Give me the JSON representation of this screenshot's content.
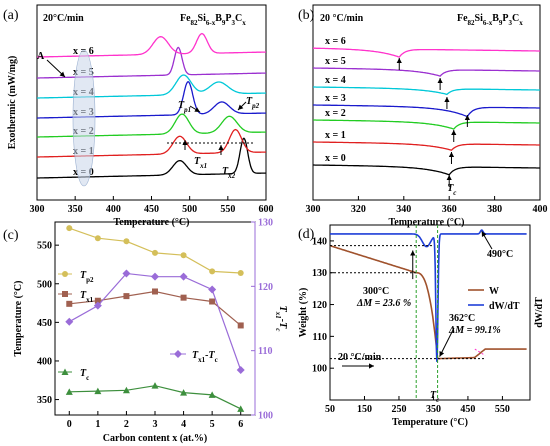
{
  "chart_data": [
    {
      "panel": "(a)",
      "type": "line",
      "rate_label": "20°C/min",
      "formula": "Fe82Si6-xB9P3Cx",
      "xlabel": "Temperature (°C)",
      "ylabel": "Exothermic (mW/mg)",
      "xlim": [
        300,
        600
      ],
      "xticks": [
        300,
        350,
        400,
        450,
        500,
        550,
        600
      ],
      "series": [
        {
          "name": "x = 0",
          "color": "#000000",
          "peaks": [
            {
              "t": 487,
              "h": 1.3,
              "w": 9
            },
            {
              "t": 571,
              "h": 3.2,
              "w": 5
            }
          ]
        },
        {
          "name": "x = 1",
          "color": "#e02020",
          "peaks": [
            {
              "t": 487,
              "h": 1.6,
              "w": 9
            },
            {
              "t": 560,
              "h": 2.1,
              "w": 8
            }
          ]
        },
        {
          "name": "x = 2",
          "color": "#22cc22",
          "peaks": [
            {
              "t": 490,
              "h": 1.8,
              "w": 9
            },
            {
              "t": 552,
              "h": 1.5,
              "w": 10
            }
          ]
        },
        {
          "name": "x = 3",
          "color": "#1a1acc",
          "peaks": [
            {
              "t": 498,
              "h": 3.0,
              "w": 6
            },
            {
              "t": 542,
              "h": 1.1,
              "w": 10
            }
          ]
        },
        {
          "name": "x = 4",
          "color": "#00c8d8",
          "peaks": [
            {
              "t": 492,
              "h": 1.8,
              "w": 10
            },
            {
              "t": 538,
              "h": 1.1,
              "w": 12
            }
          ]
        },
        {
          "name": "x = 5",
          "color": "#9b30d0",
          "peaks": [
            {
              "t": 485,
              "h": 2.5,
              "w": 5
            }
          ]
        },
        {
          "name": "x = 6",
          "color": "#ff33cc",
          "peaks": [
            {
              "t": 462,
              "h": 1.6,
              "w": 10
            },
            {
              "t": 516,
              "h": 1.8,
              "w": 7
            }
          ]
        }
      ],
      "annotations": [
        "A",
        "Tp1",
        "Tp2",
        "Tx1",
        "Tx2"
      ]
    },
    {
      "panel": "(b)",
      "type": "line",
      "rate_label": "20 °C/min",
      "formula": "Fe82Si6-xB9P3Cx",
      "xlabel": "Temperature (°C)",
      "xlim": [
        300,
        400
      ],
      "xticks": [
        300,
        320,
        340,
        360,
        380,
        400
      ],
      "series": [
        {
          "name": "x = 0",
          "color": "#000000",
          "dip_t": 360,
          "dip_h": 1.0
        },
        {
          "name": "x = 1",
          "color": "#e02020",
          "dip_t": 361,
          "dip_h": 0.8
        },
        {
          "name": "x = 2",
          "color": "#22cc22",
          "dip_t": 362,
          "dip_h": 0.9
        },
        {
          "name": "x = 3",
          "color": "#1a1acc",
          "dip_t": 368,
          "dip_h": 1.2
        },
        {
          "name": "x = 4",
          "color": "#00c8d8",
          "dip_t": 359,
          "dip_h": 0.7
        },
        {
          "name": "x = 5",
          "color": "#9b30d0",
          "dip_t": 356,
          "dip_h": 0.8
        },
        {
          "name": "x = 6",
          "color": "#ff33cc",
          "dip_t": 338,
          "dip_h": 1.0
        }
      ],
      "annotations": [
        "Tc"
      ]
    },
    {
      "panel": "(c)",
      "type": "line",
      "xlabel": "Carbon content x (at.%)",
      "ylabel": "Temperature (°C)",
      "y2label": "Tx1-Tc",
      "x": [
        0,
        1,
        2,
        3,
        4,
        5,
        6
      ],
      "xlim": [
        -0.5,
        6.5
      ],
      "ylim": [
        330,
        580
      ],
      "yticks": [
        350,
        400,
        450,
        500,
        550
      ],
      "y2lim": [
        100,
        130
      ],
      "y2ticks": [
        100,
        110,
        120,
        130
      ],
      "series": [
        {
          "name": "Tp2",
          "color": "#d4bf5a",
          "marker": "circle",
          "axis": "left",
          "values": [
            572,
            559,
            555,
            540,
            537,
            516,
            514
          ]
        },
        {
          "name": "Tx1",
          "color": "#a06050",
          "marker": "square",
          "axis": "left",
          "values": [
            474,
            478,
            484,
            490,
            482,
            477,
            446
          ]
        },
        {
          "name": "Tc",
          "color": "#3d8f3d",
          "marker": "triangle",
          "axis": "left",
          "values": [
            360,
            361,
            362,
            368,
            359,
            356,
            338
          ]
        },
        {
          "name": "Tx1-Tc",
          "color": "#9a6cd8",
          "marker": "diamond",
          "axis": "right",
          "values": [
            114.5,
            117,
            122,
            121.5,
            121.5,
            119.5,
            107
          ]
        }
      ]
    },
    {
      "panel": "(d)",
      "type": "line",
      "xlabel": "Temperature (°C)",
      "ylabel": "Weight (%)",
      "y2label": "dW/dT",
      "rate_label": "20 °C/min",
      "xlim": [
        50,
        630
      ],
      "xticks": [
        50,
        150,
        250,
        350,
        450,
        550
      ],
      "ylim": [
        90,
        145
      ],
      "yticks": [
        100,
        110,
        120,
        130,
        140
      ],
      "series": [
        {
          "name": "W",
          "color": "#a0522d"
        },
        {
          "name": "dW/dT",
          "color": "#1f3fd8"
        }
      ],
      "annotations": {
        "a300": "300°C",
        "dm1": "ΔM = 23.6 %",
        "a362": "362°C",
        "dm2": "ΔM = 99.1%",
        "a490": "490°C",
        "tc": "Tc"
      }
    }
  ]
}
